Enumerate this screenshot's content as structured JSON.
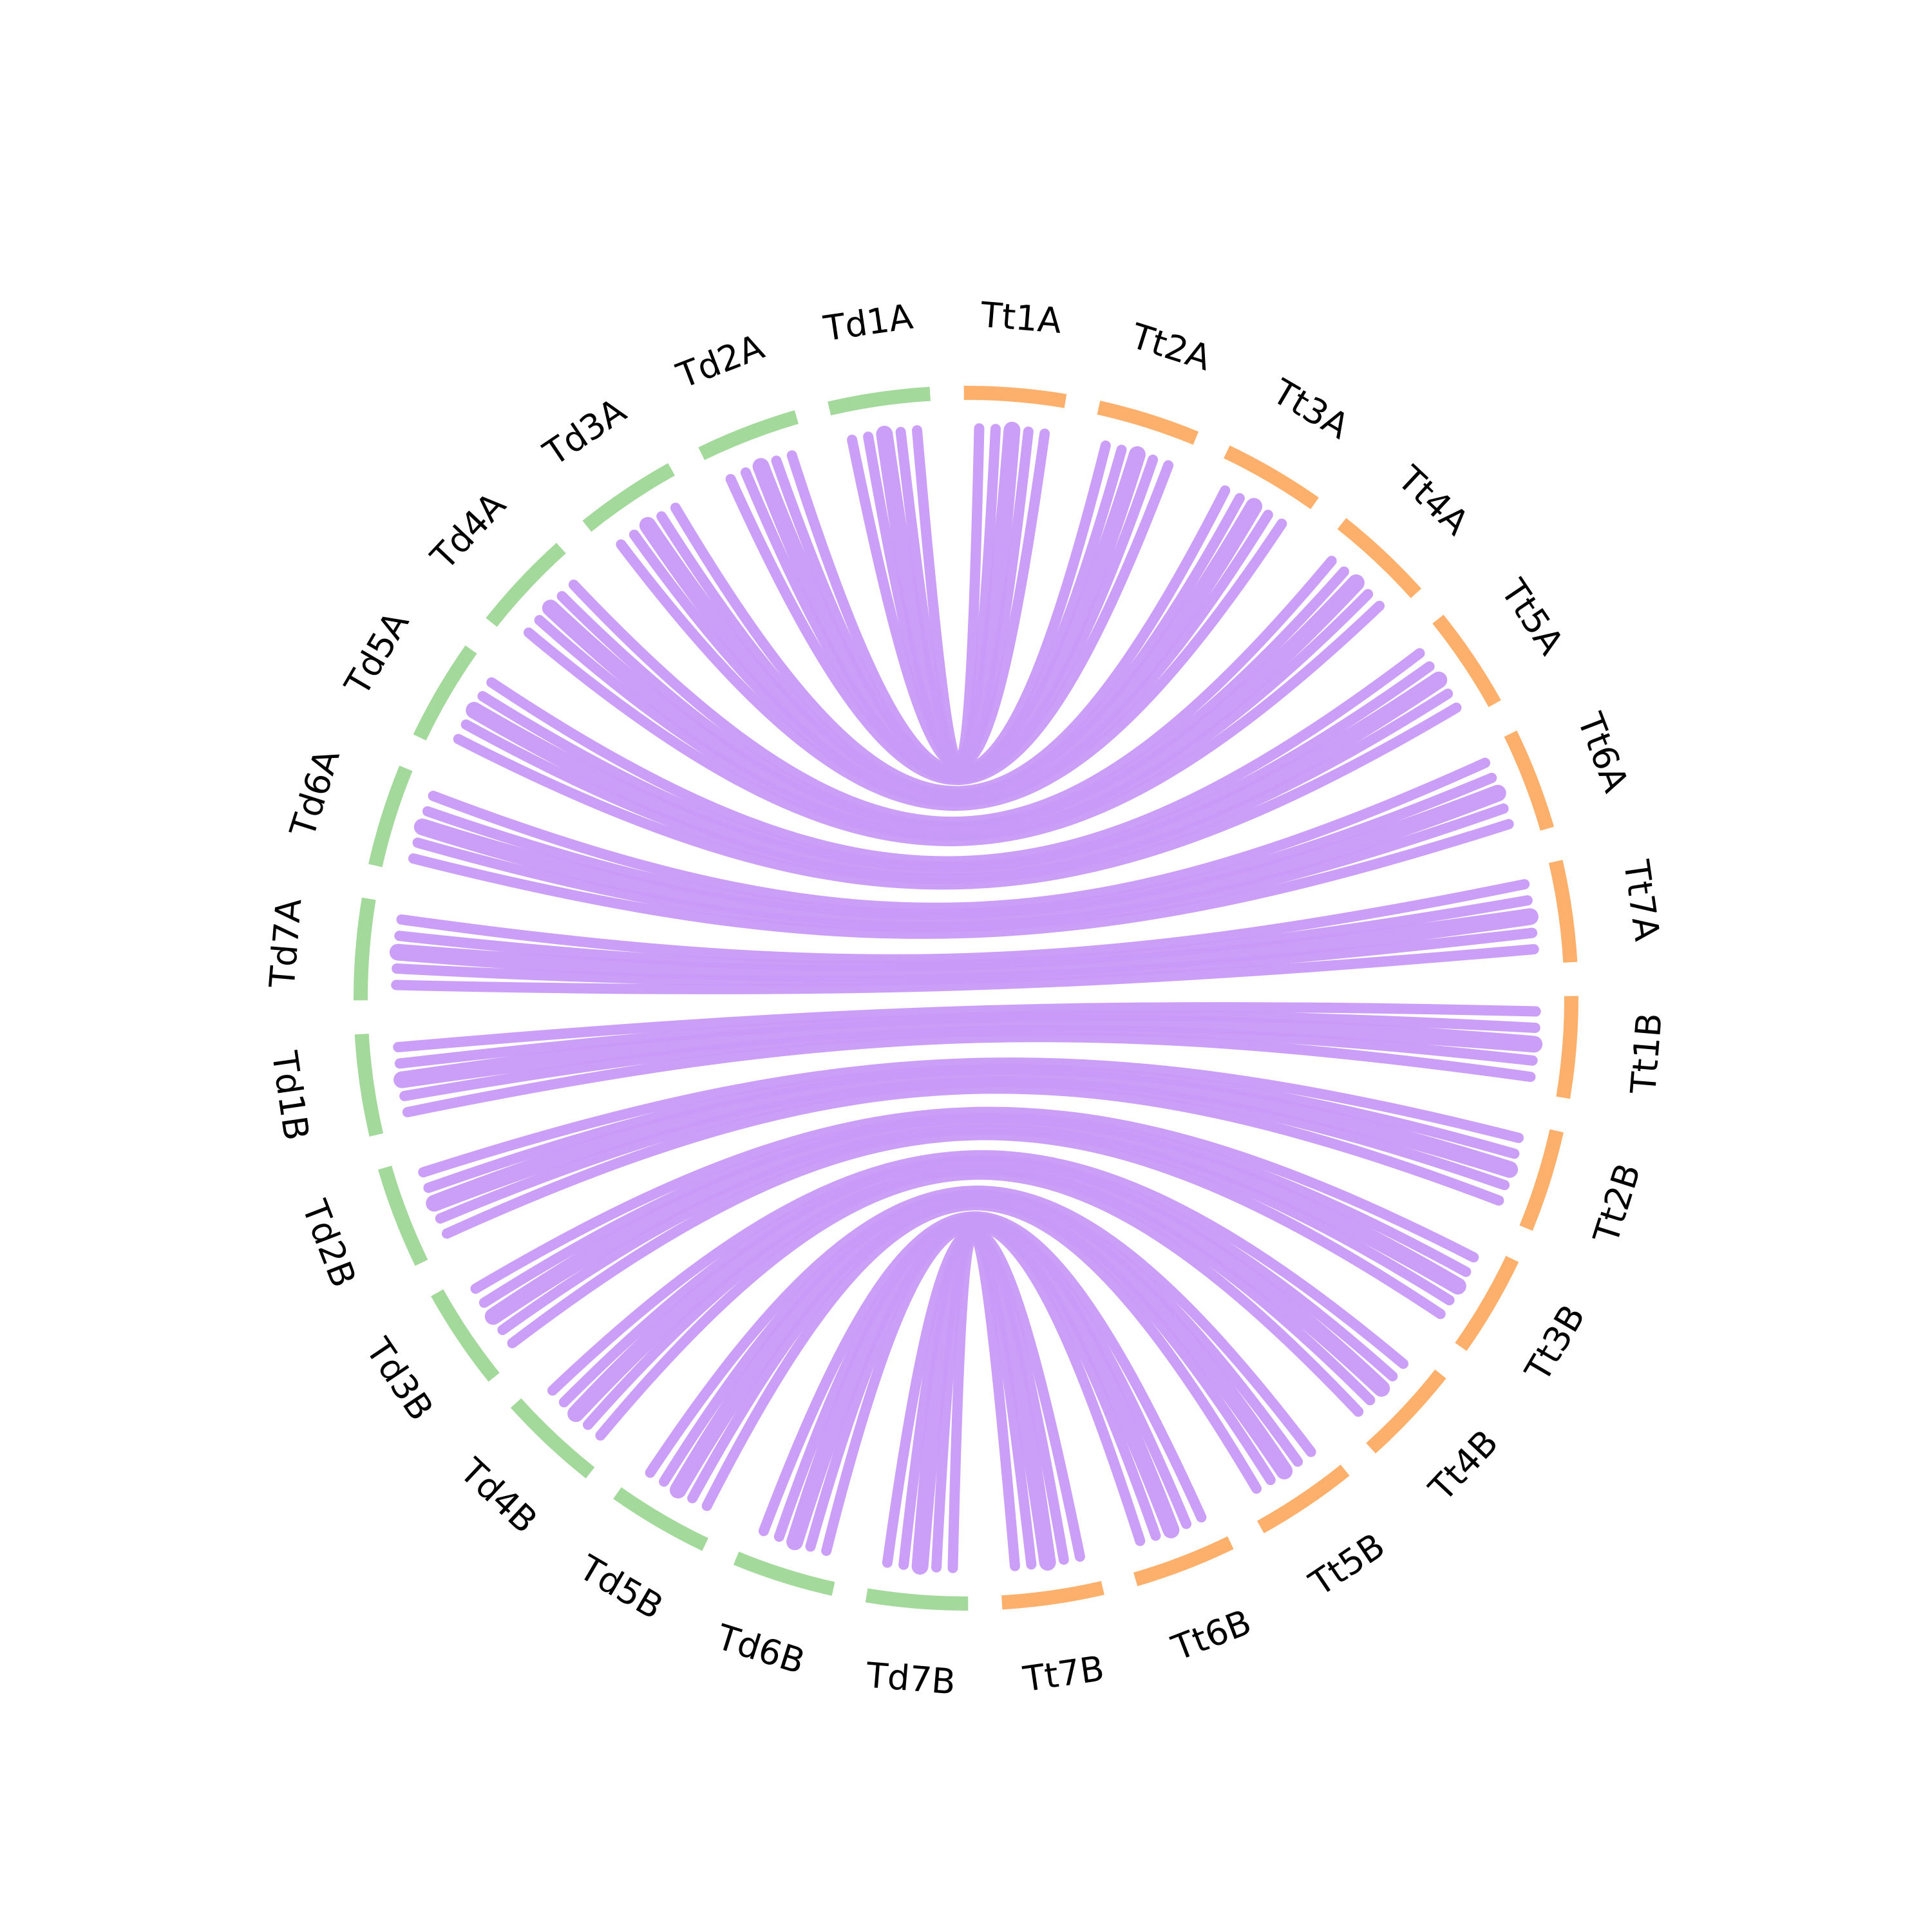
{
  "colors": {
    "td_arc": "#a3d99a",
    "tt_arc": "#fdb06c",
    "link": "#c89af7",
    "text": "#000000"
  },
  "chart_data": {
    "type": "chord",
    "title": "",
    "groups": [
      {
        "name": "Td",
        "color": "#a3d99a"
      },
      {
        "name": "Tt",
        "color": "#fdb06c"
      }
    ],
    "chromosomes": [
      {
        "label": "Td1A",
        "group": "Td"
      },
      {
        "label": "Td2A",
        "group": "Td"
      },
      {
        "label": "Td3A",
        "group": "Td"
      },
      {
        "label": "Td4A",
        "group": "Td"
      },
      {
        "label": "Td5A",
        "group": "Td"
      },
      {
        "label": "Td6A",
        "group": "Td"
      },
      {
        "label": "Td7A",
        "group": "Td"
      },
      {
        "label": "Td1B",
        "group": "Td"
      },
      {
        "label": "Td2B",
        "group": "Td"
      },
      {
        "label": "Td3B",
        "group": "Td"
      },
      {
        "label": "Td4B",
        "group": "Td"
      },
      {
        "label": "Td5B",
        "group": "Td"
      },
      {
        "label": "Td6B",
        "group": "Td"
      },
      {
        "label": "Td7B",
        "group": "Td"
      },
      {
        "label": "Tt7B",
        "group": "Tt"
      },
      {
        "label": "Tt6B",
        "group": "Tt"
      },
      {
        "label": "Tt5B",
        "group": "Tt"
      },
      {
        "label": "Tt4B",
        "group": "Tt"
      },
      {
        "label": "Tt3B",
        "group": "Tt"
      },
      {
        "label": "Tt2B",
        "group": "Tt"
      },
      {
        "label": "Tt1B",
        "group": "Tt"
      },
      {
        "label": "Tt7A",
        "group": "Tt"
      },
      {
        "label": "Tt6A",
        "group": "Tt"
      },
      {
        "label": "Tt5A",
        "group": "Tt"
      },
      {
        "label": "Tt4A",
        "group": "Tt"
      },
      {
        "label": "Tt3A",
        "group": "Tt"
      },
      {
        "label": "Tt2A",
        "group": "Tt"
      },
      {
        "label": "Tt1A",
        "group": "Tt"
      }
    ],
    "links": [
      {
        "from": "Td1A",
        "to": "Tt1A"
      },
      {
        "from": "Td2A",
        "to": "Tt2A"
      },
      {
        "from": "Td3A",
        "to": "Tt3A"
      },
      {
        "from": "Td4A",
        "to": "Tt4A"
      },
      {
        "from": "Td5A",
        "to": "Tt5A"
      },
      {
        "from": "Td6A",
        "to": "Tt6A"
      },
      {
        "from": "Td7A",
        "to": "Tt7A"
      },
      {
        "from": "Td1B",
        "to": "Tt1B"
      },
      {
        "from": "Td2B",
        "to": "Tt2B"
      },
      {
        "from": "Td3B",
        "to": "Tt3B"
      },
      {
        "from": "Td4B",
        "to": "Tt4B"
      },
      {
        "from": "Td5B",
        "to": "Tt5B"
      },
      {
        "from": "Td6B",
        "to": "Tt6B"
      },
      {
        "from": "Td7B",
        "to": "Tt7B"
      }
    ]
  }
}
